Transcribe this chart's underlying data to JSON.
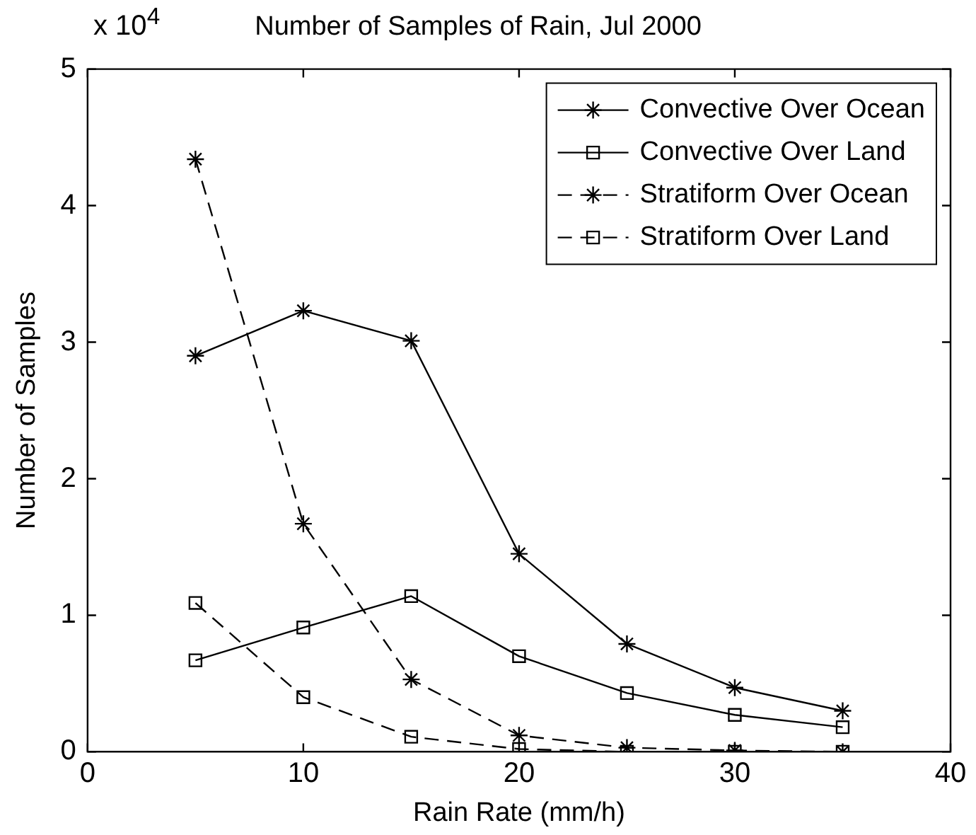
{
  "chart_data": {
    "type": "line",
    "title": "Number of Samples of Rain, Jul 2000",
    "xlabel": "Rain Rate (mm/h)",
    "ylabel": "Number of Samples",
    "annotations": [
      "x 10$^{4}$"
    ],
    "x": [
      5,
      10,
      15,
      20,
      25,
      30,
      35
    ],
    "series": [
      {
        "name": "Convective Over Ocean",
        "color": "#000000",
        "marker": "cross",
        "line_style": "solid",
        "values": [
          2.9,
          3.23,
          3.01,
          1.45,
          0.79,
          0.47,
          0.3
        ]
      },
      {
        "name": "Convective Over Land",
        "color": "#000000",
        "marker": "square",
        "line_style": "solid",
        "values": [
          0.67,
          0.91,
          1.14,
          0.7,
          0.43,
          0.27,
          0.18
        ]
      },
      {
        "name": "Stratiform Over Ocean",
        "color": "#000000",
        "marker": "cross",
        "line_style": "dashed",
        "values": [
          4.34,
          1.67,
          0.53,
          0.12,
          0.03,
          0.01,
          0
        ]
      },
      {
        "name": "Stratiform Over Land",
        "color": "#000000",
        "marker": "square",
        "line_style": "dashed",
        "values": [
          1.09,
          0.4,
          0.11,
          0.02,
          0,
          0,
          0
        ]
      }
    ],
    "xlim": [
      0,
      40
    ],
    "xticks": [
      0,
      10,
      20,
      30,
      40
    ],
    "ylim": [
      0,
      5
    ],
    "yticks": [
      0,
      1,
      2,
      3,
      4,
      5
    ],
    "grid": false,
    "legend": "top right"
  }
}
